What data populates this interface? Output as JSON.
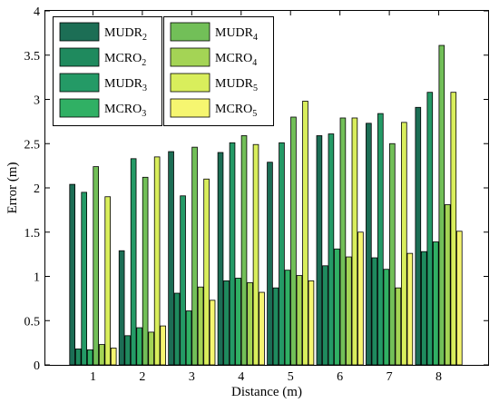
{
  "chart_data": {
    "type": "bar",
    "xlabel": "Distance (m)",
    "ylabel": "Error (m)",
    "categories": [
      "1",
      "2",
      "3",
      "4",
      "5",
      "6",
      "7",
      "8"
    ],
    "ylim": [
      0,
      4
    ],
    "yticks": [
      "0",
      "0.5",
      "1",
      "1.5",
      "2",
      "2.5",
      "3",
      "3.5",
      "4"
    ],
    "legend_position": "top-left",
    "grid": false,
    "series": [
      {
        "name": "MUDR",
        "sub": "2",
        "color": "#1c6e55",
        "values": [
          2.04,
          1.29,
          2.41,
          2.4,
          2.29,
          2.59,
          2.73,
          2.91
        ]
      },
      {
        "name": "MCRO",
        "sub": "2",
        "color": "#1f8a5e",
        "values": [
          0.18,
          0.33,
          0.81,
          0.95,
          0.87,
          1.12,
          1.21,
          1.28
        ]
      },
      {
        "name": "MUDR",
        "sub": "3",
        "color": "#249a66",
        "values": [
          1.95,
          2.33,
          1.91,
          2.51,
          2.51,
          2.61,
          2.84,
          3.08
        ]
      },
      {
        "name": "MCRO",
        "sub": "3",
        "color": "#30b064",
        "values": [
          0.17,
          0.42,
          0.61,
          0.98,
          1.07,
          1.31,
          1.08,
          1.39
        ]
      },
      {
        "name": "MUDR",
        "sub": "4",
        "color": "#72bf58",
        "values": [
          2.24,
          2.12,
          2.46,
          2.59,
          2.8,
          2.79,
          2.5,
          3.61
        ]
      },
      {
        "name": "MCRO",
        "sub": "4",
        "color": "#a4d455",
        "values": [
          0.23,
          0.37,
          0.88,
          0.93,
          1.01,
          1.22,
          0.87,
          1.81
        ]
      },
      {
        "name": "MUDR",
        "sub": "5",
        "color": "#d9ee5c",
        "values": [
          1.9,
          2.35,
          2.1,
          2.49,
          2.98,
          2.79,
          2.74,
          3.08
        ]
      },
      {
        "name": "MCRO",
        "sub": "5",
        "color": "#f6f670",
        "values": [
          0.19,
          0.44,
          0.73,
          0.82,
          0.95,
          1.5,
          1.26,
          1.51
        ]
      }
    ]
  }
}
